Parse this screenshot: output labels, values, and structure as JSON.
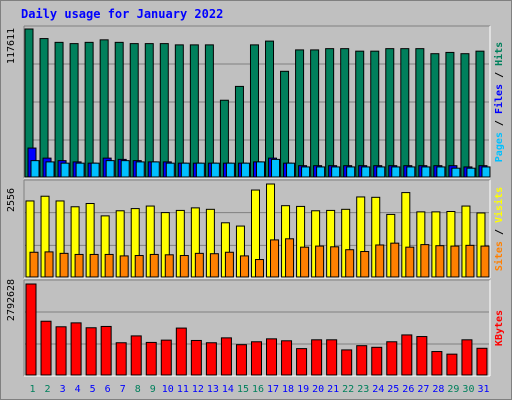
{
  "title": "Daily usage for January 2022",
  "colors": {
    "hits": "#00805c",
    "files": "#0000ff",
    "pages": "#00c0ff",
    "visits": "#ffff00",
    "sites": "#ff8000",
    "kbytes": "#ff0000",
    "weekend": "#00805c",
    "weekday": "#0000ff",
    "background": "#c0c0c0"
  },
  "chart_data": [
    {
      "type": "bar",
      "panel": "hits-files-pages",
      "ymax_label": "117611",
      "ylim": [
        0,
        117611
      ],
      "right_labels": [
        {
          "text": "Pages",
          "color": "#00c0ff"
        },
        {
          "text": " / ",
          "color": "#000000"
        },
        {
          "text": "Files",
          "color": "#0000ff"
        },
        {
          "text": " / ",
          "color": "#000000"
        },
        {
          "text": "Hits",
          "color": "#00805c"
        }
      ],
      "categories": [
        "1",
        "2",
        "3",
        "4",
        "5",
        "6",
        "7",
        "8",
        "9",
        "10",
        "11",
        "12",
        "13",
        "14",
        "15",
        "16",
        "17",
        "18",
        "19",
        "20",
        "21",
        "22",
        "23",
        "24",
        "25",
        "26",
        "27",
        "28",
        "29",
        "30",
        "31"
      ],
      "series": [
        {
          "name": "Hits",
          "values": [
            117611,
            110000,
            107000,
            106000,
            107000,
            109000,
            107000,
            106000,
            106000,
            106000,
            105000,
            105000,
            105000,
            61000,
            72000,
            105000,
            108000,
            84000,
            101000,
            101000,
            102000,
            102000,
            100000,
            100000,
            102000,
            102000,
            102000,
            98000,
            99000,
            98000,
            100000
          ]
        },
        {
          "name": "Files",
          "values": [
            23000,
            15000,
            13000,
            12000,
            11000,
            15000,
            14000,
            13000,
            12000,
            12000,
            11000,
            11000,
            11000,
            11000,
            11000,
            12000,
            15000,
            11000,
            9000,
            9000,
            9000,
            9000,
            9000,
            9000,
            9000,
            9000,
            9000,
            9000,
            9000,
            8000,
            9000
          ]
        },
        {
          "name": "Pages",
          "values": [
            13000,
            12000,
            11000,
            11000,
            11000,
            13000,
            13000,
            12000,
            12000,
            11000,
            11000,
            11000,
            11000,
            11000,
            11000,
            12000,
            14000,
            11000,
            8000,
            8000,
            8000,
            8000,
            8000,
            8000,
            8000,
            8000,
            8000,
            8000,
            7000,
            7000,
            8000
          ]
        }
      ]
    },
    {
      "type": "bar",
      "panel": "visits-sites",
      "ymax_label": "2556",
      "ylim": [
        0,
        2556
      ],
      "right_labels": [
        {
          "text": "Sites",
          "color": "#ff8000"
        },
        {
          "text": " / ",
          "color": "#000000"
        },
        {
          "text": "Visits",
          "color": "#ffff00"
        }
      ],
      "categories": [
        "1",
        "2",
        "3",
        "4",
        "5",
        "6",
        "7",
        "8",
        "9",
        "10",
        "11",
        "12",
        "13",
        "14",
        "15",
        "16",
        "17",
        "18",
        "19",
        "20",
        "21",
        "22",
        "23",
        "24",
        "25",
        "26",
        "27",
        "28",
        "29",
        "30",
        "31"
      ],
      "series": [
        {
          "name": "Visits",
          "values": [
            2090,
            2220,
            2090,
            1930,
            2020,
            1680,
            1820,
            1880,
            1950,
            1770,
            1830,
            1900,
            1860,
            1490,
            1400,
            2390,
            2556,
            1960,
            1940,
            1820,
            1830,
            1860,
            2200,
            2190,
            1720,
            2320,
            1790,
            1790,
            1800,
            1950,
            1760
          ]
        },
        {
          "name": "Sites",
          "values": [
            680,
            690,
            650,
            620,
            620,
            620,
            580,
            590,
            620,
            610,
            590,
            650,
            640,
            680,
            580,
            480,
            1020,
            1050,
            820,
            850,
            830,
            750,
            700,
            880,
            930,
            820,
            890,
            860,
            850,
            870,
            850
          ]
        }
      ]
    },
    {
      "type": "bar",
      "panel": "kbytes",
      "ymax_label": "2792628",
      "ylim": [
        0,
        2792628
      ],
      "right_labels": [
        {
          "text": "KBytes",
          "color": "#ff0000"
        }
      ],
      "categories": [
        "1",
        "2",
        "3",
        "4",
        "5",
        "6",
        "7",
        "8",
        "9",
        "10",
        "11",
        "12",
        "13",
        "14",
        "15",
        "16",
        "17",
        "18",
        "19",
        "20",
        "21",
        "22",
        "23",
        "24",
        "25",
        "26",
        "27",
        "28",
        "29",
        "30",
        "31"
      ],
      "series": [
        {
          "name": "KBytes",
          "values": [
            2792628,
            1650000,
            1480000,
            1600000,
            1450000,
            1490000,
            990000,
            1200000,
            1000000,
            1070000,
            1440000,
            1060000,
            990000,
            1140000,
            930000,
            1020000,
            1110000,
            1050000,
            810000,
            1080000,
            1080000,
            770000,
            900000,
            850000,
            1020000,
            1230000,
            1180000,
            720000,
            640000,
            1080000,
            820000
          ]
        }
      ]
    }
  ],
  "x_ticks": [
    "1",
    "2",
    "3",
    "4",
    "5",
    "6",
    "7",
    "8",
    "9",
    "10",
    "11",
    "12",
    "13",
    "14",
    "15",
    "16",
    "17",
    "18",
    "19",
    "20",
    "21",
    "22",
    "23",
    "24",
    "25",
    "26",
    "27",
    "28",
    "29",
    "30",
    "31"
  ],
  "weekend_days": [
    "1",
    "2",
    "8",
    "9",
    "15",
    "16",
    "22",
    "23",
    "29",
    "30"
  ]
}
